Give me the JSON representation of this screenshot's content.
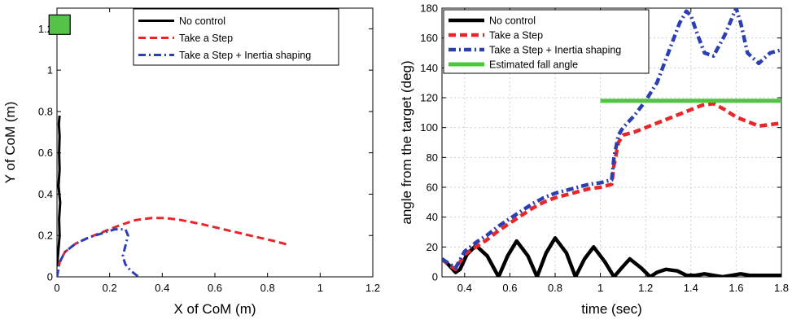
{
  "chart_data": [
    {
      "type": "line",
      "title": "",
      "xlabel": "X of CoM (m)",
      "ylabel": "Y of CoM (m)",
      "xlim": [
        0,
        1.2
      ],
      "ylim": [
        0,
        1.3
      ],
      "xticks": [
        "0",
        "0.2",
        "0.4",
        "0.6",
        "0.8",
        "1",
        "1.2"
      ],
      "yticks": [
        "0",
        "0.2",
        "0.4",
        "0.6",
        "0.8",
        "1",
        "1.2"
      ],
      "grid": false,
      "legend_position": "top-right",
      "target_marker": {
        "x": 0.01,
        "y": 1.22,
        "color": "#55c24a"
      },
      "series": [
        {
          "name": "No control",
          "color": "#000000",
          "style": "solid",
          "x": [
            0,
            0.005,
            0.01,
            0.008,
            0.012,
            0.006,
            0.01,
            0.008,
            0.01,
            0.007,
            0.01
          ],
          "y": [
            0.05,
            0.12,
            0.2,
            0.28,
            0.36,
            0.44,
            0.52,
            0.6,
            0.68,
            0.74,
            0.78
          ]
        },
        {
          "name": "Take a Step",
          "color": "#e8262a",
          "style": "dashed",
          "x": [
            0.0,
            0.01,
            0.03,
            0.07,
            0.12,
            0.18,
            0.24,
            0.3,
            0.36,
            0.41,
            0.47,
            0.55,
            0.65,
            0.75,
            0.82,
            0.88
          ],
          "y": [
            0.0,
            0.07,
            0.12,
            0.16,
            0.19,
            0.22,
            0.25,
            0.275,
            0.285,
            0.285,
            0.275,
            0.255,
            0.225,
            0.195,
            0.175,
            0.155
          ]
        },
        {
          "name": "Take a Step + Inertia shaping",
          "color": "#2b3fb0",
          "style": "dashdot",
          "x": [
            0.0,
            0.01,
            0.03,
            0.07,
            0.12,
            0.17,
            0.22,
            0.26,
            0.27,
            0.26,
            0.25,
            0.26,
            0.28,
            0.3,
            0.31
          ],
          "y": [
            0.0,
            0.07,
            0.12,
            0.16,
            0.19,
            0.21,
            0.23,
            0.23,
            0.2,
            0.15,
            0.1,
            0.06,
            0.03,
            0.01,
            0.0
          ]
        }
      ]
    },
    {
      "type": "line",
      "title": "",
      "xlabel": "time (sec)",
      "ylabel": "angle from the target (deg)",
      "xlim": [
        0.3,
        1.8
      ],
      "ylim": [
        0,
        180
      ],
      "xticks": [
        "0.4",
        "0.6",
        "0.8",
        "1",
        "1.2",
        "1.4",
        "1.6",
        "1.8"
      ],
      "yticks": [
        "0",
        "20",
        "40",
        "60",
        "80",
        "100",
        "120",
        "140",
        "160",
        "180"
      ],
      "grid": true,
      "legend_position": "top-left",
      "series": [
        {
          "name": "No control",
          "color": "#000000",
          "style": "solid",
          "x": [
            0.3,
            0.33,
            0.36,
            0.38,
            0.41,
            0.45,
            0.5,
            0.55,
            0.59,
            0.63,
            0.68,
            0.72,
            0.76,
            0.8,
            0.85,
            0.89,
            0.93,
            0.97,
            1.02,
            1.06,
            1.1,
            1.13,
            1.18,
            1.22,
            1.25,
            1.29,
            1.34,
            1.38,
            1.42,
            1.46,
            1.5,
            1.54,
            1.58,
            1.62,
            1.66,
            1.7,
            1.75,
            1.8
          ],
          "y": [
            12,
            8,
            3,
            5,
            15,
            21,
            14,
            0,
            14,
            24,
            14,
            0,
            16,
            26,
            16,
            0,
            12,
            20,
            10,
            0,
            7,
            12,
            6,
            0,
            3,
            5,
            4,
            1,
            1,
            2,
            1,
            0,
            1,
            2,
            1,
            1,
            1,
            1
          ]
        },
        {
          "name": "Take a Step",
          "color": "#e8262a",
          "style": "dashed",
          "x": [
            0.3,
            0.33,
            0.36,
            0.4,
            0.45,
            0.5,
            0.55,
            0.6,
            0.65,
            0.7,
            0.75,
            0.8,
            0.85,
            0.9,
            0.95,
            1.0,
            1.05,
            1.06,
            1.08,
            1.1,
            1.15,
            1.2,
            1.3,
            1.4,
            1.45,
            1.5,
            1.55,
            1.6,
            1.7,
            1.8
          ],
          "y": [
            12,
            8,
            5,
            15,
            20,
            25,
            31,
            36,
            41,
            46,
            50,
            53,
            55,
            57,
            59,
            60,
            62,
            75,
            90,
            95,
            97,
            100,
            106,
            112,
            115,
            116,
            112,
            107,
            101,
            103
          ]
        },
        {
          "name": "Take a Step + Inertia shaping",
          "color": "#2b3fb0",
          "style": "dashdot",
          "x": [
            0.3,
            0.33,
            0.36,
            0.4,
            0.45,
            0.5,
            0.55,
            0.6,
            0.65,
            0.7,
            0.75,
            0.8,
            0.85,
            0.9,
            0.95,
            1.0,
            1.05,
            1.06,
            1.08,
            1.1,
            1.15,
            1.2,
            1.25,
            1.3,
            1.35,
            1.38,
            1.4,
            1.43,
            1.46,
            1.5,
            1.55,
            1.6,
            1.62,
            1.65,
            1.7,
            1.75,
            1.8
          ],
          "y": [
            12,
            9,
            6,
            17,
            23,
            28,
            34,
            39,
            44,
            49,
            53,
            56,
            58,
            60,
            62,
            63,
            65,
            80,
            95,
            100,
            108,
            118,
            130,
            150,
            170,
            178,
            175,
            162,
            150,
            148,
            162,
            180,
            170,
            150,
            143,
            150,
            152
          ]
        },
        {
          "name": "Estimated fall angle",
          "color": "#4cc83c",
          "style": "solid",
          "x": [
            1.0,
            1.8
          ],
          "y": [
            118,
            118
          ]
        }
      ]
    }
  ]
}
